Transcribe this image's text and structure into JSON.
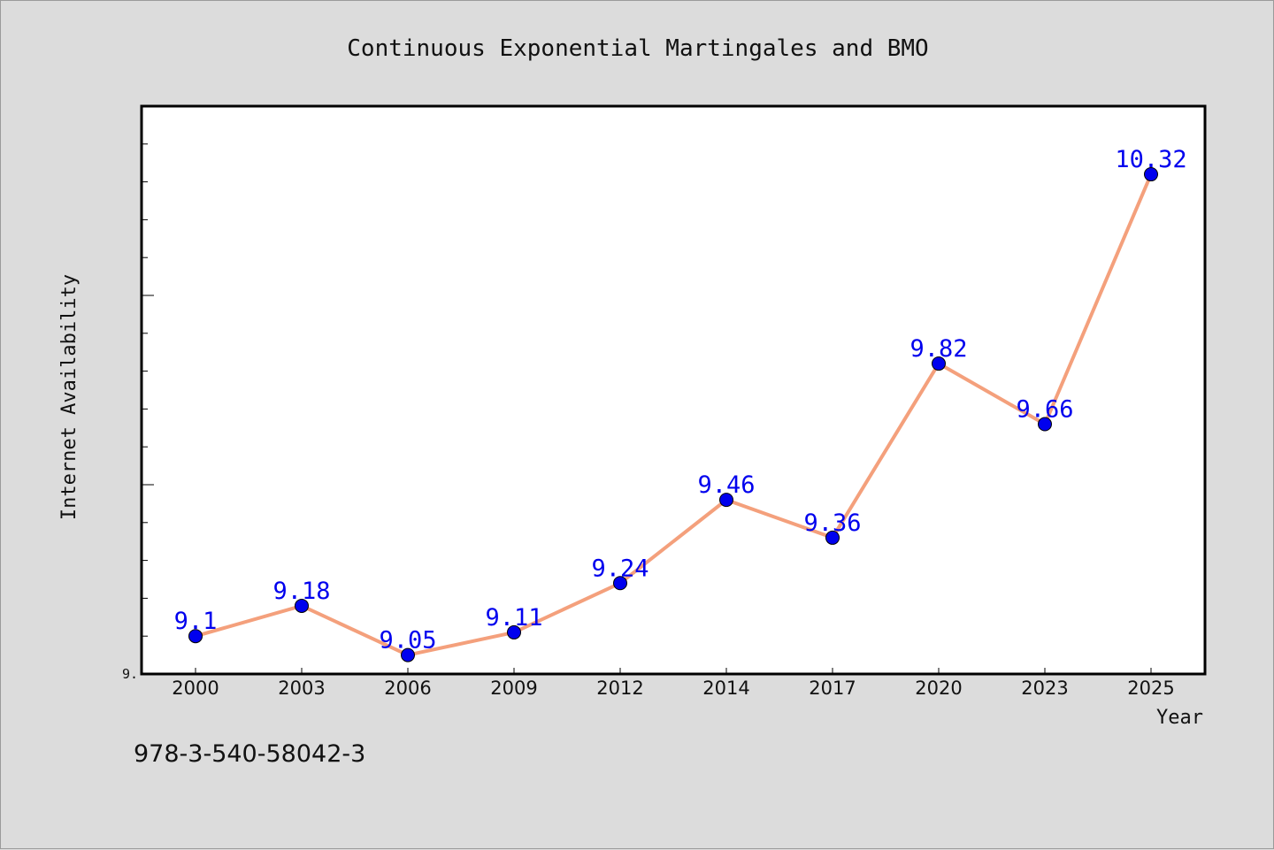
{
  "chart_data": {
    "type": "line",
    "title": "Continuous Exponential Martingales and BMO",
    "xlabel": "Year",
    "ylabel": "Internet Availability",
    "categories": [
      "2000",
      "2003",
      "2006",
      "2009",
      "2012",
      "2014",
      "2017",
      "2020",
      "2023",
      "2025"
    ],
    "series": [
      {
        "values": [
          9.1,
          9.18,
          9.05,
          9.11,
          9.24,
          9.46,
          9.36,
          9.82,
          9.66,
          10.32
        ]
      }
    ],
    "data_labels": [
      "9.1",
      "9.18",
      "9.05",
      "9.11",
      "9.24",
      "9.46",
      "9.36",
      "9.82",
      "9.66",
      "10.32"
    ],
    "y_tick_label": "9.",
    "ylim": [
      9.0,
      10.5
    ],
    "grid": false,
    "colors": {
      "line": "#f4a07c",
      "marker": "#0000ee",
      "label": "#0000ee"
    }
  },
  "footer": {
    "isbn": "978-3-540-58042-3"
  }
}
